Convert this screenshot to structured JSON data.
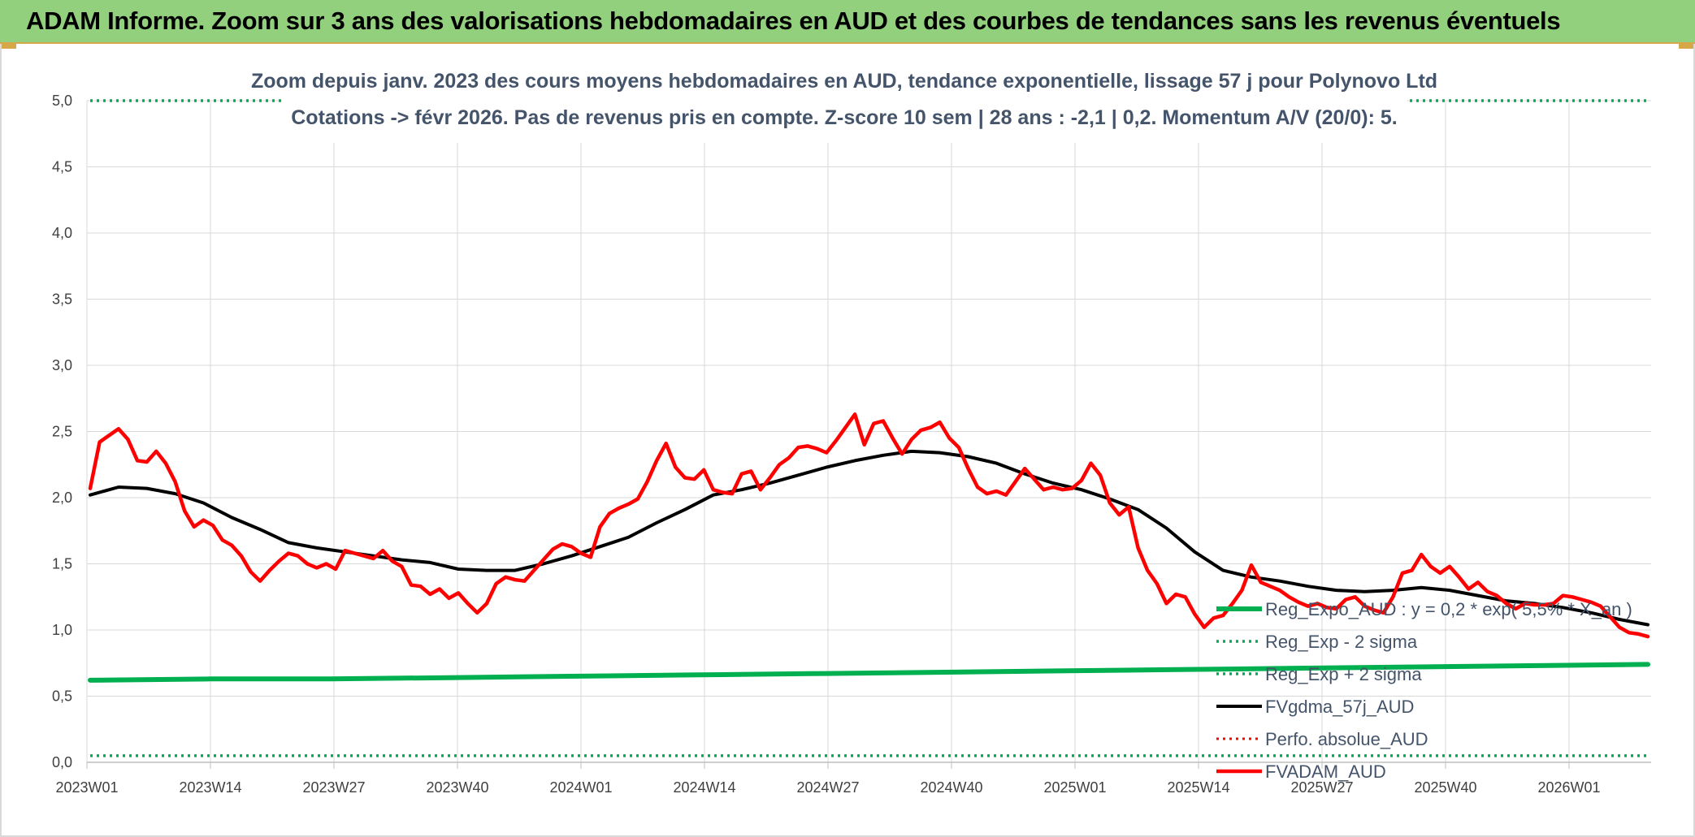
{
  "header": {
    "title": "ADAM Informe. Zoom sur 3 ans des valorisations hebdomadaires en AUD et des courbes de tendances sans les revenus éventuels"
  },
  "chart_data": {
    "type": "line",
    "title_lines": [
      "Zoom depuis janv. 2023 des cours moyens hebdomadaires en AUD, tendance exponentielle, lissage 57 j pour Polynovo Ltd",
      "Cotations -> févr 2026. Pas de revenus pris en compte. Z-score 10 sem | 28 ans : -2,1 | 0,2. Momentum A/V (20/0): 5."
    ],
    "xlabel": "",
    "ylabel": "",
    "ylim": [
      0,
      5
    ],
    "yticks": [
      "0,0",
      "0,5",
      "1,0",
      "1,5",
      "2,0",
      "2,5",
      "3,0",
      "3,5",
      "4,0",
      "4,5",
      "5,0"
    ],
    "x_tick_labels": [
      "2023W01",
      "2023W14",
      "2023W27",
      "2023W40",
      "2024W01",
      "2024W14",
      "2024W27",
      "2024W40",
      "2025W01",
      "2025W14",
      "2025W27",
      "2025W40",
      "2026W01"
    ],
    "grid": true,
    "legend_position": "right",
    "colors": {
      "green": "#00b050",
      "black": "#000000",
      "red": "#ff0000"
    },
    "series": [
      {
        "name": "Reg_Expo_AUD : y = 0,2 * exp( 5,5% *  X_an )",
        "style": "solid-green-thick",
        "values": [
          0.62,
          0.63,
          0.63,
          0.64,
          0.65,
          0.66,
          0.67,
          0.68,
          0.69,
          0.7,
          0.71,
          0.72,
          0.73,
          0.74
        ]
      },
      {
        "name": "Reg_Exp - 2 sigma",
        "style": "dotted-green",
        "values": [
          0.05,
          0.05
        ]
      },
      {
        "name": "Reg_Exp + 2 sigma",
        "style": "dotted-green",
        "values": [
          5.0,
          5.0
        ]
      },
      {
        "name": "FVgdma_57j_AUD",
        "style": "solid-black",
        "values": [
          2.02,
          2.08,
          2.07,
          2.03,
          1.96,
          1.85,
          1.76,
          1.66,
          1.62,
          1.59,
          1.56,
          1.53,
          1.51,
          1.46,
          1.45,
          1.45,
          1.5,
          1.56,
          1.63,
          1.7,
          1.81,
          1.91,
          2.02,
          2.06,
          2.11,
          2.17,
          2.23,
          2.28,
          2.32,
          2.35,
          2.34,
          2.31,
          2.26,
          2.18,
          2.11,
          2.06,
          1.99,
          1.91,
          1.77,
          1.59,
          1.45,
          1.4,
          1.37,
          1.33,
          1.3,
          1.29,
          1.3,
          1.32,
          1.3,
          1.26,
          1.22,
          1.2,
          1.17,
          1.13,
          1.08,
          1.04
        ]
      },
      {
        "name": "Perfo. absolue_AUD",
        "style": "dotted-red",
        "values": []
      },
      {
        "name": "FVADAM_AUD",
        "style": "solid-red-thick",
        "values": [
          2.07,
          2.42,
          2.47,
          2.52,
          2.44,
          2.28,
          2.27,
          2.35,
          2.26,
          2.12,
          1.9,
          1.78,
          1.83,
          1.79,
          1.68,
          1.64,
          1.56,
          1.44,
          1.37,
          1.45,
          1.52,
          1.58,
          1.56,
          1.5,
          1.47,
          1.5,
          1.46,
          1.6,
          1.58,
          1.56,
          1.54,
          1.6,
          1.52,
          1.48,
          1.34,
          1.33,
          1.27,
          1.31,
          1.24,
          1.28,
          1.2,
          1.13,
          1.2,
          1.35,
          1.4,
          1.38,
          1.37,
          1.45,
          1.53,
          1.61,
          1.65,
          1.63,
          1.58,
          1.55,
          1.78,
          1.88,
          1.92,
          1.95,
          1.99,
          2.12,
          2.28,
          2.41,
          2.23,
          2.15,
          2.14,
          2.21,
          2.06,
          2.04,
          2.03,
          2.18,
          2.2,
          2.06,
          2.15,
          2.25,
          2.3,
          2.38,
          2.39,
          2.37,
          2.34,
          2.43,
          2.53,
          2.63,
          2.4,
          2.56,
          2.58,
          2.45,
          2.33,
          2.44,
          2.51,
          2.53,
          2.57,
          2.45,
          2.38,
          2.22,
          2.08,
          2.03,
          2.05,
          2.02,
          2.12,
          2.22,
          2.14,
          2.06,
          2.08,
          2.06,
          2.07,
          2.13,
          2.26,
          2.17,
          1.96,
          1.87,
          1.93,
          1.62,
          1.45,
          1.35,
          1.2,
          1.27,
          1.25,
          1.12,
          1.02,
          1.09,
          1.11,
          1.2,
          1.3,
          1.49,
          1.36,
          1.33,
          1.3,
          1.25,
          1.21,
          1.18,
          1.2,
          1.17,
          1.16,
          1.23,
          1.25,
          1.18,
          1.15,
          1.13,
          1.25,
          1.43,
          1.45,
          1.57,
          1.48,
          1.43,
          1.48,
          1.4,
          1.31,
          1.36,
          1.29,
          1.26,
          1.2,
          1.16,
          1.2,
          1.19,
          1.19,
          1.2,
          1.26,
          1.25,
          1.23,
          1.21,
          1.18,
          1.1,
          1.02,
          0.98,
          0.97,
          0.95
        ]
      }
    ]
  }
}
